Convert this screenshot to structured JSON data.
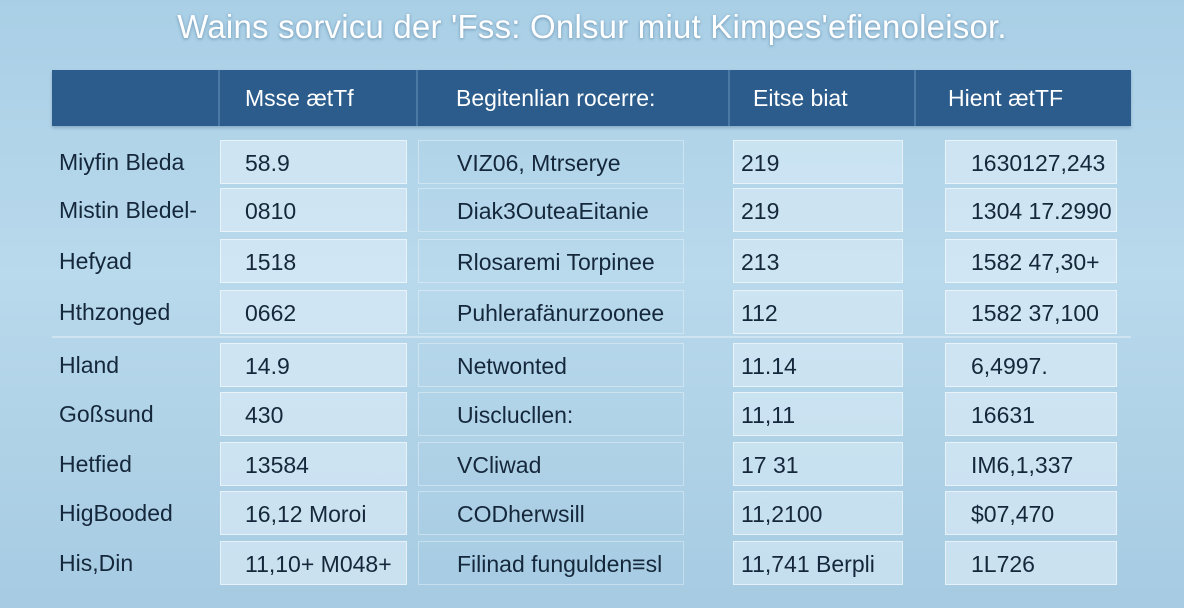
{
  "title": "Wains sorvicu der 'Fss: Onlsur miut Kimpes'efienoleisor.",
  "table": {
    "headers": [
      "",
      "Msse ætTf",
      "Begitenlian rocerre:",
      "Eitse biat",
      "Hient ætTF"
    ],
    "rows": [
      [
        "Miyfin Bleda",
        "58.9",
        "VIZ06, Mtrserye",
        "219",
        "1630127,243"
      ],
      [
        "Mistin Bledel-",
        "0810",
        "Diak3OuteaEitanie",
        "219",
        "1304 17.2990"
      ],
      [
        "Hefyad",
        "1518",
        "Rlosaremi Torpinee",
        "213",
        "1582 47,30+"
      ],
      [
        "Hthzonged",
        "0662",
        "Puhlerafänurzoonee",
        "112",
        "1582 37,100"
      ],
      [
        "Hland",
        "14.9",
        "Netwonted",
        "11.14",
        "6,4997."
      ],
      [
        "Goßsund",
        "430",
        "Uisclucllen:",
        "11,11",
        "16631"
      ],
      [
        "Hetfied",
        "13584",
        "VCliwad",
        "17 31",
        "IM6,1,337"
      ],
      [
        "HigBooded",
        "16,12 Moroi",
        "CODherwsill",
        "11,2100",
        "$07,470"
      ],
      [
        "His,Din",
        "11,10+ M048+",
        "Filinad fungulden≡sl",
        "11,741 Berpli",
        "1L726"
      ]
    ]
  }
}
